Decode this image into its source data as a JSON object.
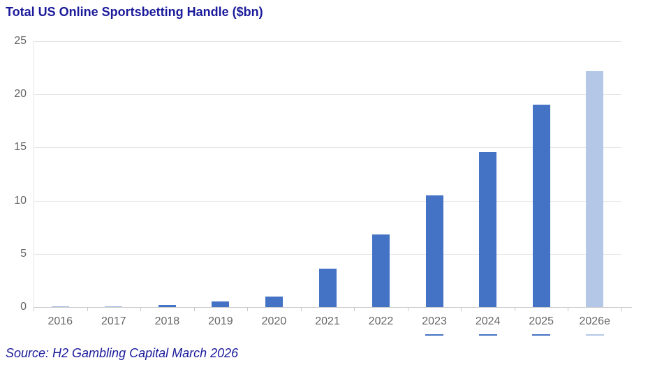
{
  "title": "Total US Online Sportsbetting Handle ($bn)",
  "source_note": "Source: H2 Gambling Capital March 2026",
  "colors": {
    "bar": "#4472c4",
    "bar_estimate": "#b4c7e7",
    "title_text": "#1a1a9b",
    "source_text": "#1a1a9b",
    "axis_text": "#666666",
    "gridline": "#e4e4e4",
    "axis_line": "#c9c9c9"
  },
  "chart_data": {
    "type": "bar",
    "title": "Total US Online Sportsbetting Handle ($bn)",
    "categories": [
      "2016",
      "2017",
      "2018",
      "2019",
      "2020",
      "2021",
      "2022",
      "2023",
      "2024",
      "2025",
      "2026e"
    ],
    "values": [
      0.03,
      0.06,
      0.2,
      0.5,
      1.0,
      3.6,
      6.8,
      10.5,
      14.6,
      19.0,
      22.2
    ],
    "xlabel": "",
    "ylabel": "",
    "ylim": [
      0,
      25
    ],
    "yticks": [
      0,
      5,
      10,
      15,
      20,
      25
    ],
    "grid": true,
    "legend": "none",
    "estimate_category": "2026e",
    "underlined_categories": [
      "2023",
      "2024",
      "2025",
      "2026e"
    ]
  }
}
